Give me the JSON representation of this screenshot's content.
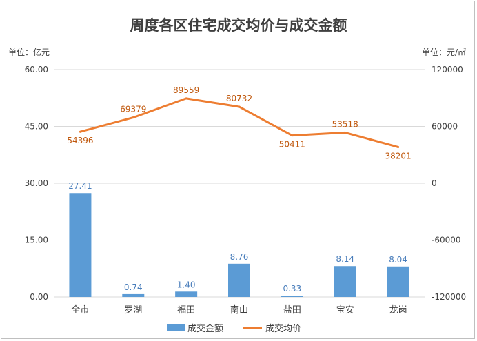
{
  "chart_data": {
    "type": "bar",
    "title": "周度各区住宅成交均价与成交金额",
    "left_unit": "单位：亿元",
    "right_unit": "单位：元/㎡",
    "categories": [
      "全市",
      "罗湖",
      "福田",
      "南山",
      "盐田",
      "宝安",
      "龙岗"
    ],
    "left_axis": {
      "min": 0,
      "max": 60,
      "ticks": [
        "0.00",
        "15.00",
        "30.00",
        "45.00",
        "60.00"
      ]
    },
    "right_axis": {
      "min": -120000,
      "max": 120000,
      "ticks": [
        "-120000",
        "-60000",
        "0",
        "60000",
        "120000"
      ]
    },
    "grid": true,
    "legend_position": "bottom",
    "series": [
      {
        "name": "成交金额",
        "type": "bar",
        "axis": "left",
        "color": "#5b9bd5",
        "values": [
          27.41,
          0.74,
          1.4,
          8.76,
          0.33,
          8.14,
          8.04
        ],
        "labels": [
          "27.41",
          "0.74",
          "1.40",
          "8.76",
          "0.33",
          "8.14",
          "8.04"
        ]
      },
      {
        "name": "成交均价",
        "type": "line",
        "axis": "right",
        "color": "#ed7d31",
        "values": [
          54396,
          69379,
          89559,
          80732,
          50411,
          53518,
          38201
        ],
        "labels": [
          "54396",
          "69379",
          "89559",
          "80732",
          "50411",
          "53518",
          "38201"
        ]
      }
    ]
  }
}
